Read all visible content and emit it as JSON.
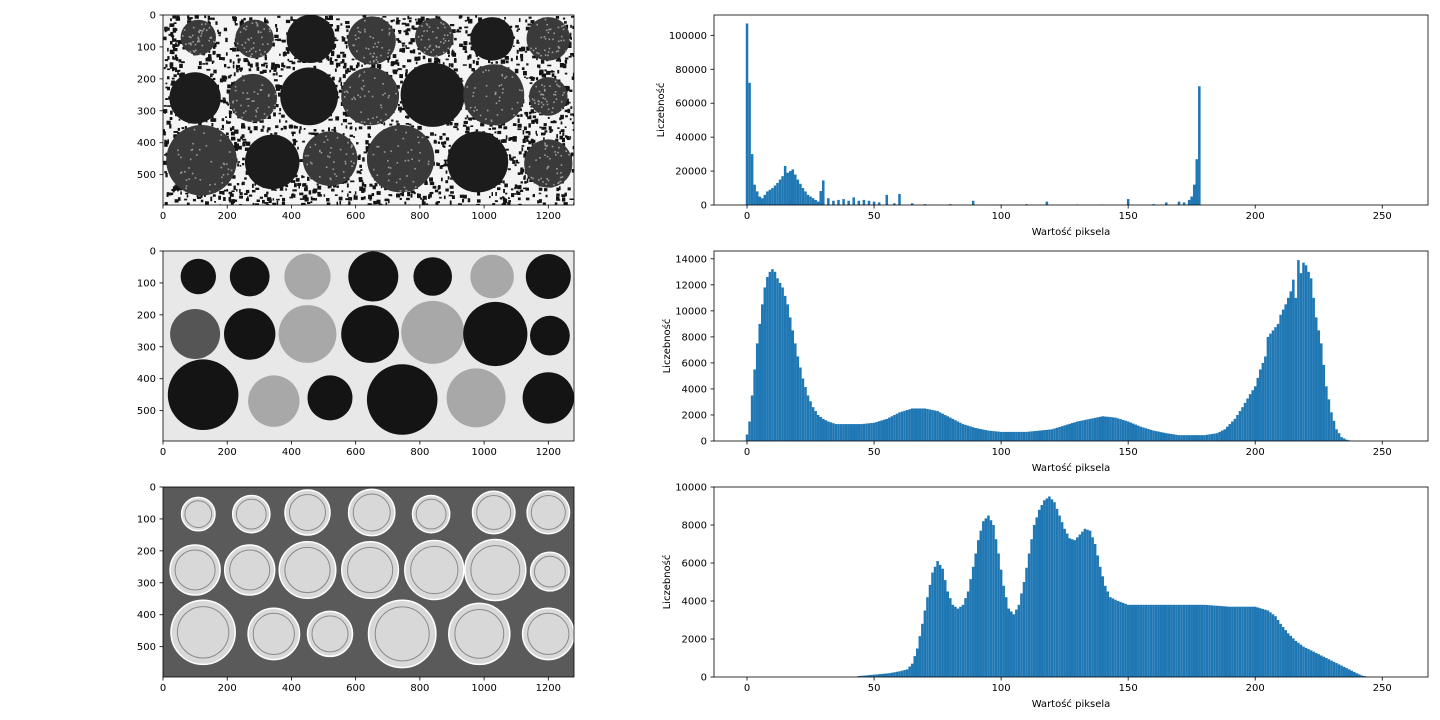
{
  "chart_data": [
    {
      "type": "image",
      "description_id": "panel-1-image",
      "x_ticks": [
        0,
        200,
        400,
        600,
        800,
        1000,
        1200
      ],
      "y_ticks": [
        0,
        100,
        200,
        300,
        400,
        500
      ],
      "xlim": [
        0,
        1280
      ],
      "ylim": [
        595,
        0
      ]
    },
    {
      "type": "bar",
      "xlabel": "Wartość piksela",
      "ylabel": "Liczebność",
      "xlim": [
        -13,
        268
      ],
      "ylim": [
        0,
        112000
      ],
      "x_ticks": [
        0,
        50,
        100,
        150,
        200,
        250
      ],
      "y_ticks": [
        0,
        20000,
        40000,
        60000,
        80000,
        100000
      ],
      "peaks": [
        [
          0,
          107000
        ],
        [
          1,
          72000
        ],
        [
          2,
          30000
        ],
        [
          3,
          12000
        ],
        [
          4,
          8000
        ],
        [
          5,
          5000
        ],
        [
          6,
          4000
        ],
        [
          7,
          6000
        ],
        [
          8,
          8000
        ],
        [
          10,
          10000
        ],
        [
          12,
          13000
        ],
        [
          14,
          17000
        ],
        [
          15,
          23000
        ],
        [
          16,
          19000
        ],
        [
          17,
          20000
        ],
        [
          18,
          21000
        ],
        [
          19,
          18000
        ],
        [
          20,
          15000
        ],
        [
          22,
          10000
        ],
        [
          24,
          6000
        ],
        [
          26,
          4000
        ],
        [
          28,
          2000
        ],
        [
          30,
          14500
        ],
        [
          32,
          4000
        ],
        [
          34,
          2500
        ],
        [
          36,
          3000
        ],
        [
          38,
          3500
        ],
        [
          40,
          2500
        ],
        [
          42,
          4500
        ],
        [
          44,
          2500
        ],
        [
          46,
          3000
        ],
        [
          48,
          2500
        ],
        [
          50,
          2000
        ],
        [
          52,
          1500
        ],
        [
          55,
          6000
        ],
        [
          58,
          1000
        ],
        [
          60,
          6500
        ],
        [
          65,
          1000
        ],
        [
          70,
          500
        ],
        [
          80,
          500
        ],
        [
          89,
          2500
        ],
        [
          100,
          300
        ],
        [
          110,
          500
        ],
        [
          118,
          2000
        ],
        [
          130,
          300
        ],
        [
          140,
          200
        ],
        [
          150,
          3500
        ],
        [
          160,
          500
        ],
        [
          165,
          1500
        ],
        [
          170,
          2000
        ],
        [
          172,
          1500
        ],
        [
          174,
          3000
        ],
        [
          175,
          5000
        ],
        [
          176,
          12000
        ],
        [
          177,
          27000
        ],
        [
          178,
          70000
        ]
      ]
    },
    {
      "type": "image",
      "description_id": "panel-2-image",
      "x_ticks": [
        0,
        200,
        400,
        600,
        800,
        1000,
        1200
      ],
      "y_ticks": [
        0,
        100,
        200,
        300,
        400,
        500
      ],
      "xlim": [
        0,
        1280
      ],
      "ylim": [
        595,
        0
      ]
    },
    {
      "type": "bar",
      "xlabel": "Wartość piksela",
      "ylabel": "Liczebność",
      "xlim": [
        -13,
        268
      ],
      "ylim": [
        0,
        14600
      ],
      "x_ticks": [
        0,
        50,
        100,
        150,
        200,
        250
      ],
      "y_ticks": [
        0,
        2000,
        4000,
        6000,
        8000,
        10000,
        12000,
        14000
      ],
      "peaks": [
        [
          0,
          500
        ],
        [
          1,
          1500
        ],
        [
          2,
          3500
        ],
        [
          3,
          5500
        ],
        [
          4,
          7500
        ],
        [
          5,
          9000
        ],
        [
          6,
          10500
        ],
        [
          7,
          11800
        ],
        [
          8,
          12600
        ],
        [
          9,
          13000
        ],
        [
          10,
          13200
        ],
        [
          11,
          13000
        ],
        [
          12,
          12500
        ],
        [
          14,
          11800
        ],
        [
          16,
          10500
        ],
        [
          18,
          8500
        ],
        [
          20,
          6500
        ],
        [
          22,
          4800
        ],
        [
          24,
          3500
        ],
        [
          26,
          2600
        ],
        [
          28,
          2000
        ],
        [
          30,
          1700
        ],
        [
          32,
          1500
        ],
        [
          35,
          1300
        ],
        [
          40,
          1300
        ],
        [
          45,
          1300
        ],
        [
          50,
          1400
        ],
        [
          55,
          1700
        ],
        [
          60,
          2200
        ],
        [
          65,
          2500
        ],
        [
          70,
          2500
        ],
        [
          75,
          2300
        ],
        [
          80,
          1800
        ],
        [
          85,
          1300
        ],
        [
          90,
          1000
        ],
        [
          95,
          800
        ],
        [
          100,
          700
        ],
        [
          110,
          700
        ],
        [
          120,
          900
        ],
        [
          125,
          1200
        ],
        [
          130,
          1500
        ],
        [
          135,
          1700
        ],
        [
          140,
          1900
        ],
        [
          145,
          1800
        ],
        [
          150,
          1500
        ],
        [
          155,
          1100
        ],
        [
          160,
          800
        ],
        [
          165,
          600
        ],
        [
          170,
          450
        ],
        [
          180,
          450
        ],
        [
          185,
          600
        ],
        [
          188,
          900
        ],
        [
          192,
          1700
        ],
        [
          195,
          2600
        ],
        [
          198,
          3600
        ],
        [
          200,
          4200
        ],
        [
          202,
          5500
        ],
        [
          204,
          6500
        ],
        [
          205,
          8000
        ],
        [
          207,
          8500
        ],
        [
          209,
          9000
        ],
        [
          210,
          9700
        ],
        [
          212,
          10500
        ],
        [
          214,
          11500
        ],
        [
          215,
          12400
        ],
        [
          216,
          11000
        ],
        [
          217,
          13900
        ],
        [
          218,
          12900
        ],
        [
          219,
          13700
        ],
        [
          220,
          13500
        ],
        [
          222,
          12500
        ],
        [
          224,
          9500
        ],
        [
          226,
          7500
        ],
        [
          228,
          4200
        ],
        [
          230,
          2200
        ],
        [
          232,
          900
        ],
        [
          234,
          300
        ],
        [
          236,
          100
        ],
        [
          238,
          0
        ]
      ]
    },
    {
      "type": "image",
      "description_id": "panel-3-image",
      "x_ticks": [
        0,
        200,
        400,
        600,
        800,
        1000,
        1200
      ],
      "y_ticks": [
        0,
        100,
        200,
        300,
        400,
        500
      ],
      "xlim": [
        0,
        1280
      ],
      "ylim": [
        595,
        0
      ]
    },
    {
      "type": "bar",
      "xlabel": "Wartość piksela",
      "ylabel": "Liczebność",
      "xlim": [
        -13,
        268
      ],
      "ylim": [
        0,
        10000
      ],
      "x_ticks": [
        0,
        50,
        100,
        150,
        200,
        250
      ],
      "y_ticks": [
        0,
        2000,
        4000,
        6000,
        8000,
        10000
      ],
      "peaks": [
        [
          44,
          50
        ],
        [
          48,
          100
        ],
        [
          52,
          150
        ],
        [
          56,
          200
        ],
        [
          60,
          300
        ],
        [
          63,
          400
        ],
        [
          65,
          700
        ],
        [
          67,
          1500
        ],
        [
          69,
          2800
        ],
        [
          71,
          4200
        ],
        [
          73,
          5500
        ],
        [
          75,
          6100
        ],
        [
          77,
          5700
        ],
        [
          79,
          4500
        ],
        [
          81,
          3800
        ],
        [
          83,
          3600
        ],
        [
          85,
          3800
        ],
        [
          87,
          4500
        ],
        [
          89,
          5800
        ],
        [
          91,
          7200
        ],
        [
          93,
          8200
        ],
        [
          95,
          8500
        ],
        [
          97,
          8000
        ],
        [
          99,
          6500
        ],
        [
          101,
          4800
        ],
        [
          103,
          3600
        ],
        [
          105,
          3300
        ],
        [
          107,
          3800
        ],
        [
          109,
          5000
        ],
        [
          111,
          6500
        ],
        [
          113,
          8000
        ],
        [
          115,
          8800
        ],
        [
          117,
          9300
        ],
        [
          119,
          9500
        ],
        [
          121,
          9200
        ],
        [
          123,
          8500
        ],
        [
          125,
          7800
        ],
        [
          127,
          7300
        ],
        [
          129,
          7200
        ],
        [
          131,
          7500
        ],
        [
          133,
          7800
        ],
        [
          135,
          7700
        ],
        [
          137,
          7000
        ],
        [
          139,
          5800
        ],
        [
          141,
          4800
        ],
        [
          143,
          4200
        ],
        [
          146,
          4000
        ],
        [
          150,
          3800
        ],
        [
          160,
          3800
        ],
        [
          170,
          3800
        ],
        [
          180,
          3800
        ],
        [
          190,
          3700
        ],
        [
          200,
          3700
        ],
        [
          205,
          3500
        ],
        [
          208,
          3200
        ],
        [
          210,
          2800
        ],
        [
          213,
          2300
        ],
        [
          216,
          1900
        ],
        [
          219,
          1600
        ],
        [
          222,
          1400
        ],
        [
          225,
          1200
        ],
        [
          228,
          1000
        ],
        [
          231,
          800
        ],
        [
          234,
          600
        ],
        [
          237,
          400
        ],
        [
          240,
          200
        ],
        [
          242,
          80
        ],
        [
          244,
          20
        ]
      ]
    }
  ]
}
